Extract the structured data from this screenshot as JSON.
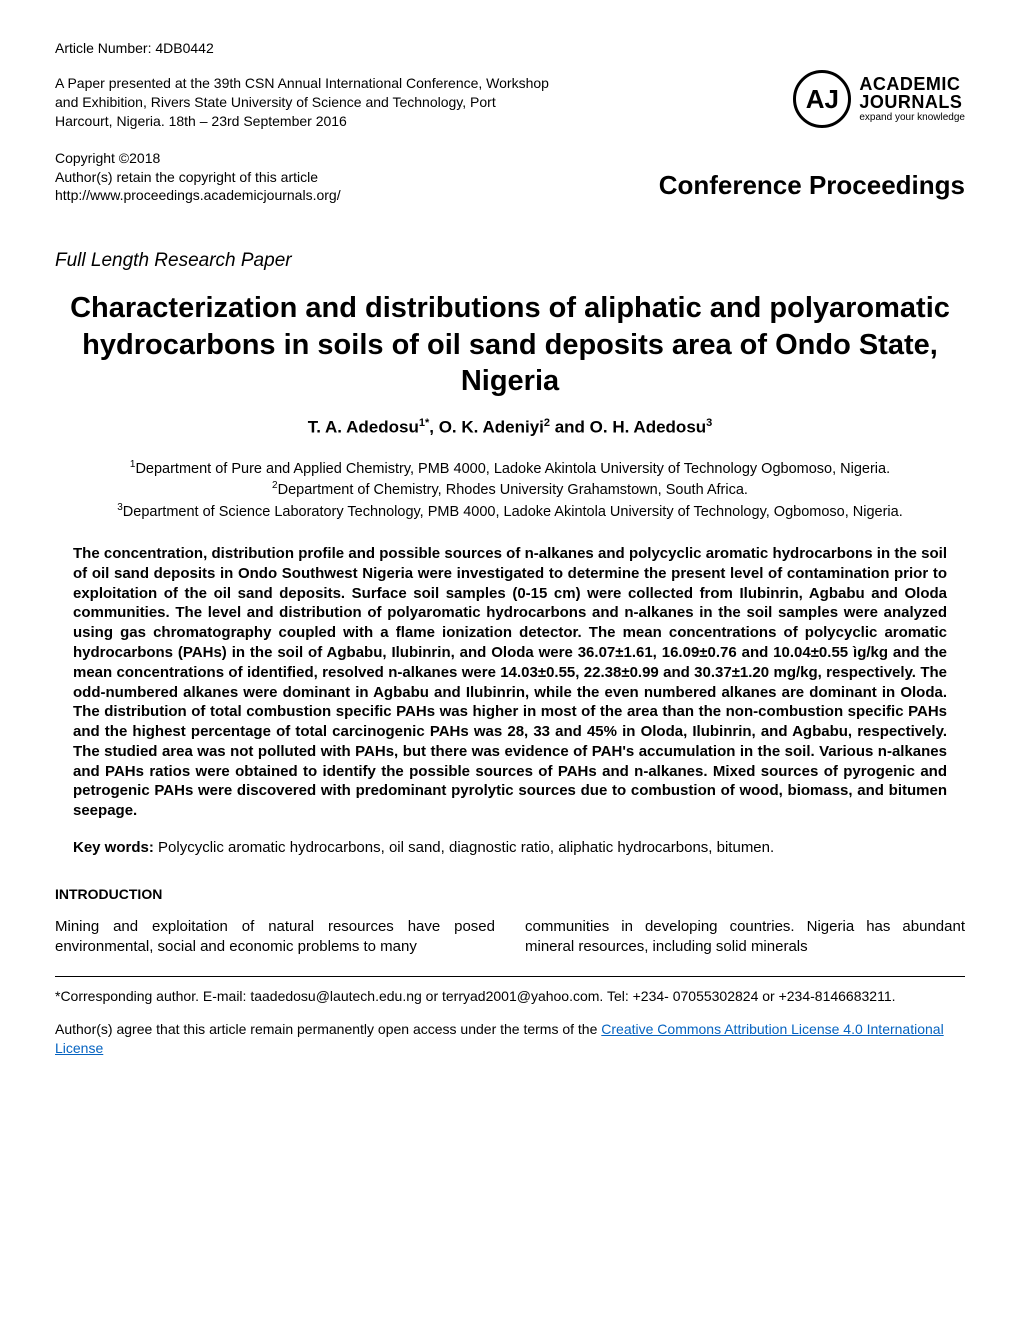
{
  "header": {
    "article_number": "Article Number: 4DB0442",
    "paper_info": "A Paper presented at the 39th CSN Annual International Conference, Workshop and Exhibition, Rivers State University of Science and Technology, Port Harcourt, Nigeria.\n18th – 23rd September 2016",
    "copyright": "Copyright ©2018",
    "copyright_note": "Author(s) retain the copyright of this article",
    "url": "http://www.proceedings.academicjournals.org/",
    "logo_initials": "AJ",
    "logo_line1": "ACADEMIC",
    "logo_line2": "JOURNALS",
    "logo_tagline": "expand your knowledge",
    "conf_label": "Conference Proceedings"
  },
  "paper": {
    "type": "Full Length Research Paper",
    "title": "Characterization and distributions of aliphatic and polyaromatic hydrocarbons in soils of oil sand deposits area of Ondo State, Nigeria",
    "authors_html": "T. A. Adedosu<sup>1*</sup>, O. K. Adeniyi<sup>2</sup> and O. H. Adedosu<sup>3</sup>",
    "affiliations_html": "<sup>1</sup>Department of Pure and Applied Chemistry, PMB 4000, Ladoke Akintola University of Technology Ogbomoso, Nigeria.<br><sup>2</sup>Department of Chemistry, Rhodes University Grahamstown, South Africa.<br><sup>3</sup>Department of Science Laboratory Technology, PMB 4000, Ladoke Akintola University of Technology, Ogbomoso, Nigeria."
  },
  "abstract": "The concentration, distribution profile and possible sources of n-alkanes and polycyclic aromatic hydrocarbons in the soil of oil sand deposits in Ondo Southwest Nigeria were investigated to determine the present level of contamination prior to exploitation of the oil sand deposits. Surface soil samples (0-15 cm) were collected from Ilubinrin, Agbabu and Oloda communities. The level and distribution of polyaromatic hydrocarbons and n-alkanes in the soil samples were analyzed using gas chromatography coupled with a flame ionization detector. The mean concentrations of polycyclic aromatic hydrocarbons (PAHs) in the soil of Agbabu, Ilubinrin, and Oloda were 36.07±1.61, 16.09±0.76 and 10.04±0.55 ìg/kg and the mean concentrations of identified, resolved n-alkanes were 14.03±0.55, 22.38±0.99 and 30.37±1.20 mg/kg, respectively. The odd-numbered alkanes were dominant in Agbabu and Ilubinrin, while the even numbered alkanes are dominant in Oloda. The distribution of total combustion specific PAHs was higher in most of the area than the non-combustion specific PAHs and the highest percentage of total carcinogenic PAHs was 28, 33 and 45% in Oloda, Ilubinrin, and Agbabu, respectively. The studied area was not polluted with PAHs, but there was evidence of PAH's accumulation in the soil. Various n-alkanes and PAHs ratios were obtained to identify the possible sources of PAHs and n-alkanes. Mixed sources of pyrogenic and petrogenic PAHs were discovered with predominant pyrolytic sources due to combustion of wood, biomass, and bitumen seepage.",
  "keywords": {
    "label": "Key words:",
    "text": " Polycyclic aromatic hydrocarbons, oil sand, diagnostic ratio, aliphatic hydrocarbons, bitumen."
  },
  "intro": {
    "header": "INTRODUCTION",
    "col1": "Mining and exploitation of natural resources have posed environmental, social and economic problems to many",
    "col2": "communities in developing countries. Nigeria has abundant mineral  resources,  including  solid  minerals"
  },
  "footer": {
    "corresponding": "*Corresponding author. E-mail: taadedosu@lautech.edu.ng or terryad2001@yahoo.com. Tel: +234- 07055302824 or +234-8146683211.",
    "license_prefix": "Author(s) agree that this article remain permanently open access under the terms of the ",
    "license_link": "Creative Commons Attribution License 4.0 International License"
  }
}
